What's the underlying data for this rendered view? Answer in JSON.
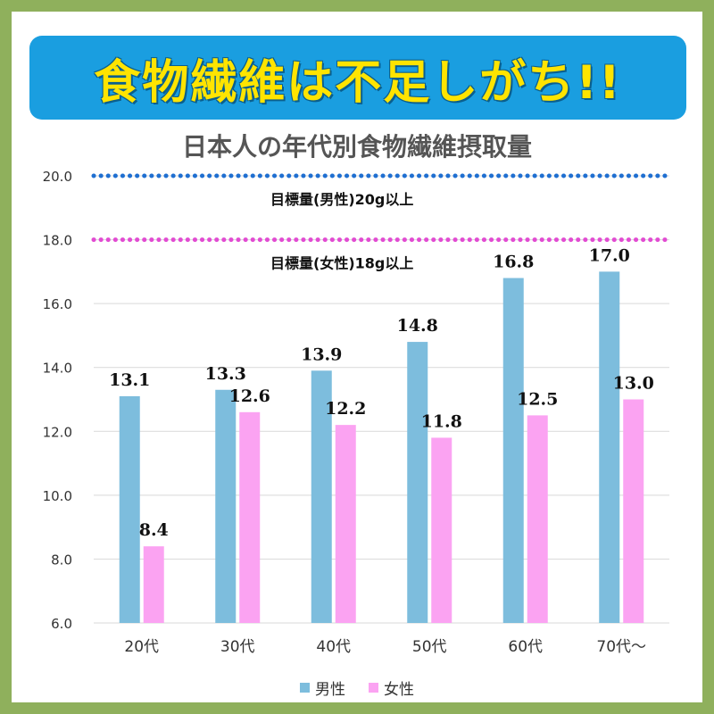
{
  "banner": {
    "title": "食物繊維は不足しがち!!"
  },
  "chart_data": {
    "type": "bar",
    "title": "日本人の年代別食物繊維摂取量",
    "categories": [
      "20代",
      "30代",
      "40代",
      "50代",
      "60代",
      "70代〜"
    ],
    "series": [
      {
        "name": "男性",
        "values": [
          13.1,
          13.3,
          13.9,
          14.8,
          16.8,
          17.0
        ],
        "color": "#7dbddd"
      },
      {
        "name": "女性",
        "values": [
          8.4,
          12.6,
          12.2,
          11.8,
          12.5,
          13.0
        ],
        "color": "#fba3f2"
      }
    ],
    "value_labels": {
      "男性": [
        "13.1",
        "13.3",
        "13.9",
        "14.8",
        "16.8",
        "17.0"
      ],
      "女性": [
        "8.4",
        "12.6",
        "12.2",
        "11.8",
        "12.5",
        "13.0"
      ]
    },
    "ylim": [
      6.0,
      20.0
    ],
    "yticks": [
      "6.0",
      "8.0",
      "10.0",
      "12.0",
      "14.0",
      "16.0",
      "18.0",
      "20.0"
    ],
    "grid": true,
    "legend": "bottom-center",
    "reference_lines": [
      {
        "value": 20.0,
        "label": "目標量(男性)20g以上",
        "color": "#1f6fd1"
      },
      {
        "value": 18.0,
        "label": "目標量(女性)18g以上",
        "color": "#e24bd2"
      }
    ]
  }
}
